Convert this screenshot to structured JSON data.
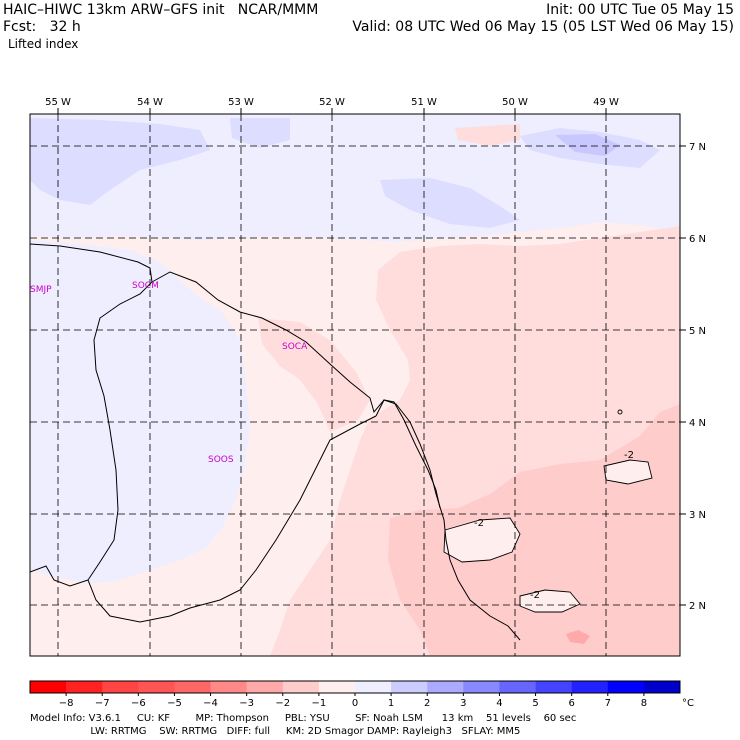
{
  "header": {
    "model_line": "HAIC–HIWC 13km ARW–GFS init   NCAR/MMM",
    "fcst_line": "Fcst:   32 h",
    "field_name": "Lifted index",
    "init_line": "Init: 00 UTC Tue 05 May 15",
    "valid_line": "Valid: 08 UTC Wed 06 May 15 (05 LST Wed 06 May 15)"
  },
  "map": {
    "lon_labels": [
      "55 W",
      "54 W",
      "53 W",
      "52 W",
      "51 W",
      "50 W",
      "49 W"
    ],
    "lat_labels": [
      "7 N",
      "6 N",
      "5 N",
      "4 N",
      "3 N",
      "2 N"
    ],
    "stations": [
      {
        "id": "smjp",
        "label": "SMJP"
      },
      {
        "id": "socm",
        "label": "SOCM"
      },
      {
        "id": "soca",
        "label": "SOCA"
      },
      {
        "id": "soos",
        "label": "SOOS"
      }
    ],
    "contour_labels": [
      "-2",
      "-2",
      "-2"
    ],
    "colors": {
      "very_light_blue": "#eeeeff",
      "light_blue": "#ddddff",
      "blue_mid": "#c8c8ff",
      "neutral_pink": "#ffeeee",
      "light_pink": "#ffdddd",
      "pink": "#ffcccc",
      "deeper_pink": "#ffaaaa"
    }
  },
  "colorbar": {
    "ticks": [
      "−8",
      "−7",
      "−6",
      "−5",
      "−4",
      "−3",
      "−2",
      "−1",
      "0",
      "1",
      "2",
      "3",
      "4",
      "5",
      "6",
      "7",
      "8"
    ],
    "unit": "°C",
    "colors": [
      "#ff0000",
      "#ff2222",
      "#ff4444",
      "#ff5555",
      "#ff6666",
      "#ff8888",
      "#ffaaaa",
      "#ffcccc",
      "#ffeeee",
      "#eeeeff",
      "#ccccff",
      "#aaaaff",
      "#8888ff",
      "#6666ff",
      "#4444ff",
      "#2222ff",
      "#0000ff",
      "#0000cc"
    ]
  },
  "footer": {
    "line1": "Model Info: V3.6.1     CU: KF        MP: Thompson     PBL: YSU        SF: Noah LSM      13 km    51 levels    60 sec",
    "line2": "                   LW: RRTMG    SW: RRTMG   DIFF: full     KM: 2D Smagor DAMP: Rayleigh3   SFLAY: MM5"
  }
}
